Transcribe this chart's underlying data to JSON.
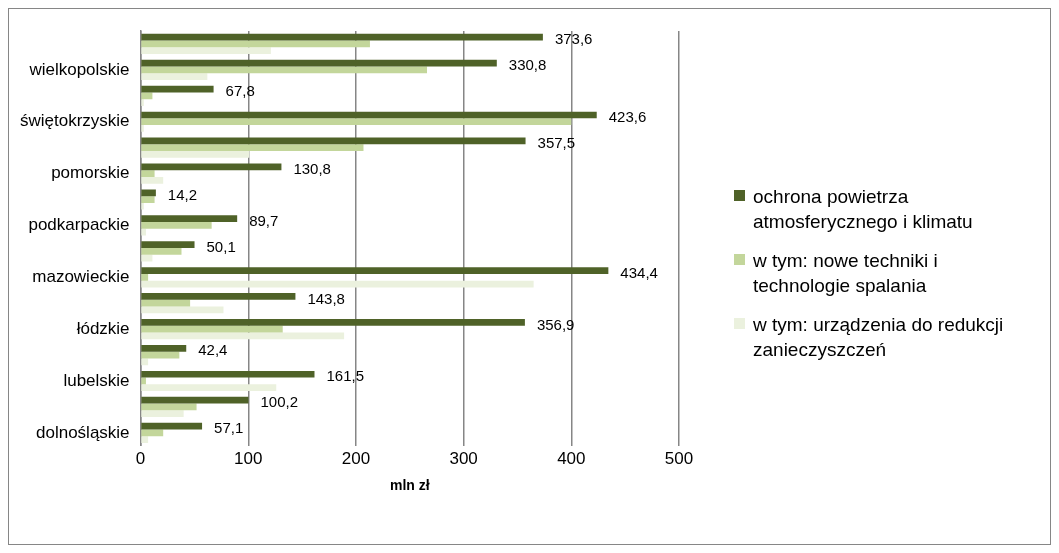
{
  "chart_data": {
    "type": "bar",
    "orientation": "horizontal",
    "xlabel": "mln zł",
    "categories": [
      null,
      "wielkopolskie",
      null,
      "świętokrzyskie",
      null,
      "pomorskie",
      null,
      "podkarpackie",
      null,
      "mazowieckie",
      null,
      "łódzkie",
      null,
      "lubelskie",
      null,
      "dolnośląskie"
    ],
    "series": [
      {
        "name": "ochrona powietrza atmosferycznego i klimatu",
        "color": "#4f6228",
        "values": [
          373.6,
          330.8,
          67.8,
          423.6,
          357.5,
          130.8,
          14.2,
          89.7,
          50.1,
          434.4,
          143.8,
          356.9,
          42.4,
          161.5,
          100.2,
          57.1
        ],
        "value_labels": [
          "373,6",
          "330,8",
          "67,8",
          "423,6",
          "357,5",
          "130,8",
          "14,2",
          "89,7",
          "50,1",
          "434,4",
          "143,8",
          "356,9",
          "42,4",
          "161,5",
          "100,2",
          "57,1"
        ]
      },
      {
        "name": "w tym: nowe techniki i technologie spalania",
        "color": "#c3d69b",
        "values": [
          213,
          266,
          11,
          400,
          207,
          13,
          13,
          66,
          38,
          7,
          46,
          132,
          36,
          5,
          52,
          21
        ]
      },
      {
        "name": "w tym: urządzenia do redukcji zanieczyszczeń",
        "color": "#ebf1de",
        "values": [
          121,
          62,
          3,
          3,
          101,
          21,
          3,
          5,
          11,
          365,
          77,
          189,
          7,
          126,
          40,
          7
        ]
      }
    ],
    "xlim": [
      0,
      500
    ],
    "xticks": [
      0,
      100,
      200,
      300,
      400,
      500
    ],
    "grid": "x",
    "legend": "right"
  }
}
